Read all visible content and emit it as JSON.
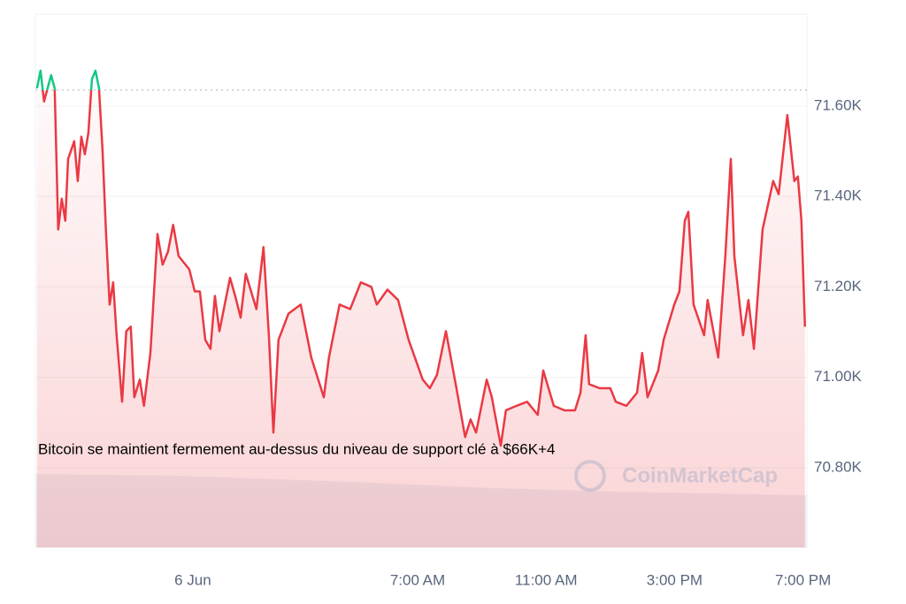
{
  "chart_data": {
    "type": "line",
    "annotation": "Bitcoin se maintient fermement au-dessus du niveau de support clé à $66K+4",
    "watermark": "CoinMarketCap",
    "color_up": "#16c784",
    "color_down": "#ea3943",
    "baseline": 71635,
    "grid": true,
    "xlim": [
      -4.9,
      19.12
    ],
    "ylim": [
      70624,
      71803
    ],
    "xticks": [
      {
        "value": 0,
        "label": "6 Jun"
      },
      {
        "value": 7,
        "label": "7:00 AM"
      },
      {
        "value": 11,
        "label": "11:00 AM"
      },
      {
        "value": 15,
        "label": "3:00 PM"
      },
      {
        "value": 19,
        "label": "7:00 PM"
      }
    ],
    "yticks": [
      {
        "value": 70800,
        "label": "70.80K"
      },
      {
        "value": 71000,
        "label": "71.00K"
      },
      {
        "value": 71200,
        "label": "71.20K"
      },
      {
        "value": 71400,
        "label": "71.40K"
      },
      {
        "value": 71600,
        "label": "71.60K"
      }
    ],
    "x": [
      -4.85,
      -4.74,
      -4.63,
      -4.41,
      -4.3,
      -4.19,
      -4.08,
      -3.97,
      -3.88,
      -3.69,
      -3.58,
      -3.47,
      -3.36,
      -3.25,
      -3.14,
      -3.03,
      -2.92,
      -2.81,
      -2.7,
      -2.59,
      -2.48,
      -2.37,
      -2.2,
      -2.07,
      -1.93,
      -1.82,
      -1.65,
      -1.52,
      -1.32,
      -1.1,
      -0.94,
      -0.77,
      -0.61,
      -0.44,
      -0.11,
      0.06,
      0.22,
      0.39,
      0.55,
      0.69,
      0.83,
      1.16,
      1.32,
      1.49,
      1.65,
      1.98,
      2.2,
      2.37,
      2.51,
      2.67,
      2.98,
      3.36,
      3.69,
      4.08,
      4.24,
      4.57,
      4.9,
      5.23,
      5.56,
      5.73,
      6.06,
      6.39,
      6.72,
      7.16,
      7.38,
      7.6,
      7.88,
      8.21,
      8.48,
      8.65,
      8.82,
      9.15,
      9.31,
      9.59,
      9.75,
      10.08,
      10.41,
      10.74,
      10.91,
      11.24,
      11.57,
      11.9,
      12.07,
      12.23,
      12.34,
      12.67,
      13.0,
      13.17,
      13.5,
      13.83,
      13.99,
      14.16,
      14.49,
      14.66,
      14.99,
      15.15,
      15.32,
      15.43,
      15.59,
      15.92,
      16.03,
      16.36,
      16.58,
      16.75,
      16.86,
      17.13,
      17.3,
      17.47,
      17.74,
      18.07,
      18.24,
      18.51,
      18.73,
      18.84,
      18.95,
      19.06
    ],
    "values": [
      71639,
      71678,
      71610,
      71668,
      71639,
      71327,
      71395,
      71346,
      71483,
      71522,
      71434,
      71532,
      71493,
      71541,
      71659,
      71678,
      71639,
      71502,
      71317,
      71161,
      71210,
      71093,
      70946,
      71102,
      71112,
      70956,
      70995,
      70937,
      71054,
      71317,
      71249,
      71278,
      71337,
      71268,
      71239,
      71190,
      71190,
      71083,
      71063,
      71180,
      71102,
      71220,
      71180,
      71132,
      71229,
      71151,
      71288,
      71093,
      70878,
      71083,
      71141,
      71161,
      71044,
      70956,
      71044,
      71161,
      71151,
      71210,
      71200,
      71161,
      71194,
      71171,
      71083,
      70995,
      70976,
      71005,
      71102,
      70976,
      70868,
      70907,
      70878,
      70995,
      70956,
      70849,
      70927,
      70937,
      70946,
      70917,
      71015,
      70937,
      70927,
      70927,
      70966,
      71093,
      70985,
      70976,
      70976,
      70946,
      70937,
      70966,
      71054,
      70956,
      71015,
      71083,
      71161,
      71190,
      71346,
      71366,
      71161,
      71093,
      71171,
      71044,
      71268,
      71483,
      71268,
      71093,
      71171,
      71063,
      71327,
      71434,
      71405,
      71580,
      71434,
      71444,
      71346,
      71112
    ]
  }
}
